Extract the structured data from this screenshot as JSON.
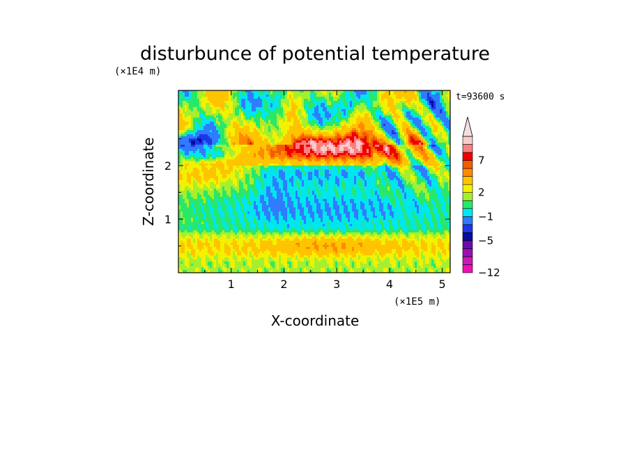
{
  "chart_data": {
    "type": "heatmap",
    "title": "disturbunce of potential temperature",
    "xlabel": "X-coordinate",
    "ylabel": "Z-coordinate",
    "x_unit": "(×1E5 m)",
    "y_unit": "(×1E4 m)",
    "time_label": "t=93600 s",
    "xlim": [
      0,
      5.15
    ],
    "ylim": [
      0,
      3.4
    ],
    "x_ticks": [
      1,
      2,
      3,
      4,
      5
    ],
    "y_ticks": [
      1,
      2
    ],
    "colorbar": {
      "levels": [
        -12,
        -10,
        -8,
        -7,
        -5,
        -4,
        -3,
        -1,
        0,
        1,
        2,
        3,
        5,
        6,
        7,
        8,
        9,
        10
      ],
      "labels": [
        "-12",
        "-5",
        "-1",
        "2",
        "7"
      ],
      "label_levels": [
        -12,
        -5,
        -1,
        2,
        7
      ],
      "colors": [
        "#f20fb2",
        "#c81ab8",
        "#9b10b5",
        "#6a0cad",
        "#0b0b9e",
        "#1c37e8",
        "#2f7cff",
        "#00e6ef",
        "#28e86a",
        "#a6ef2e",
        "#f2f200",
        "#ffc400",
        "#ff8a00",
        "#f25c00",
        "#f00000",
        "#ff7f7f",
        "#f7cccc"
      ],
      "overflow_arrow_color": "#f4dede"
    },
    "features": [
      {
        "x": 3.0,
        "z": 2.35,
        "value": 8
      },
      {
        "x": 2.5,
        "z": 2.1,
        "value": 5
      },
      {
        "x": 2.8,
        "z": 0.5,
        "value": 3
      },
      {
        "x": 2.9,
        "z": 1.1,
        "value": -1
      },
      {
        "x": 1.8,
        "z": 1.4,
        "value": -1
      },
      {
        "x": 4.8,
        "z": 2.5,
        "value": -5
      }
    ]
  }
}
